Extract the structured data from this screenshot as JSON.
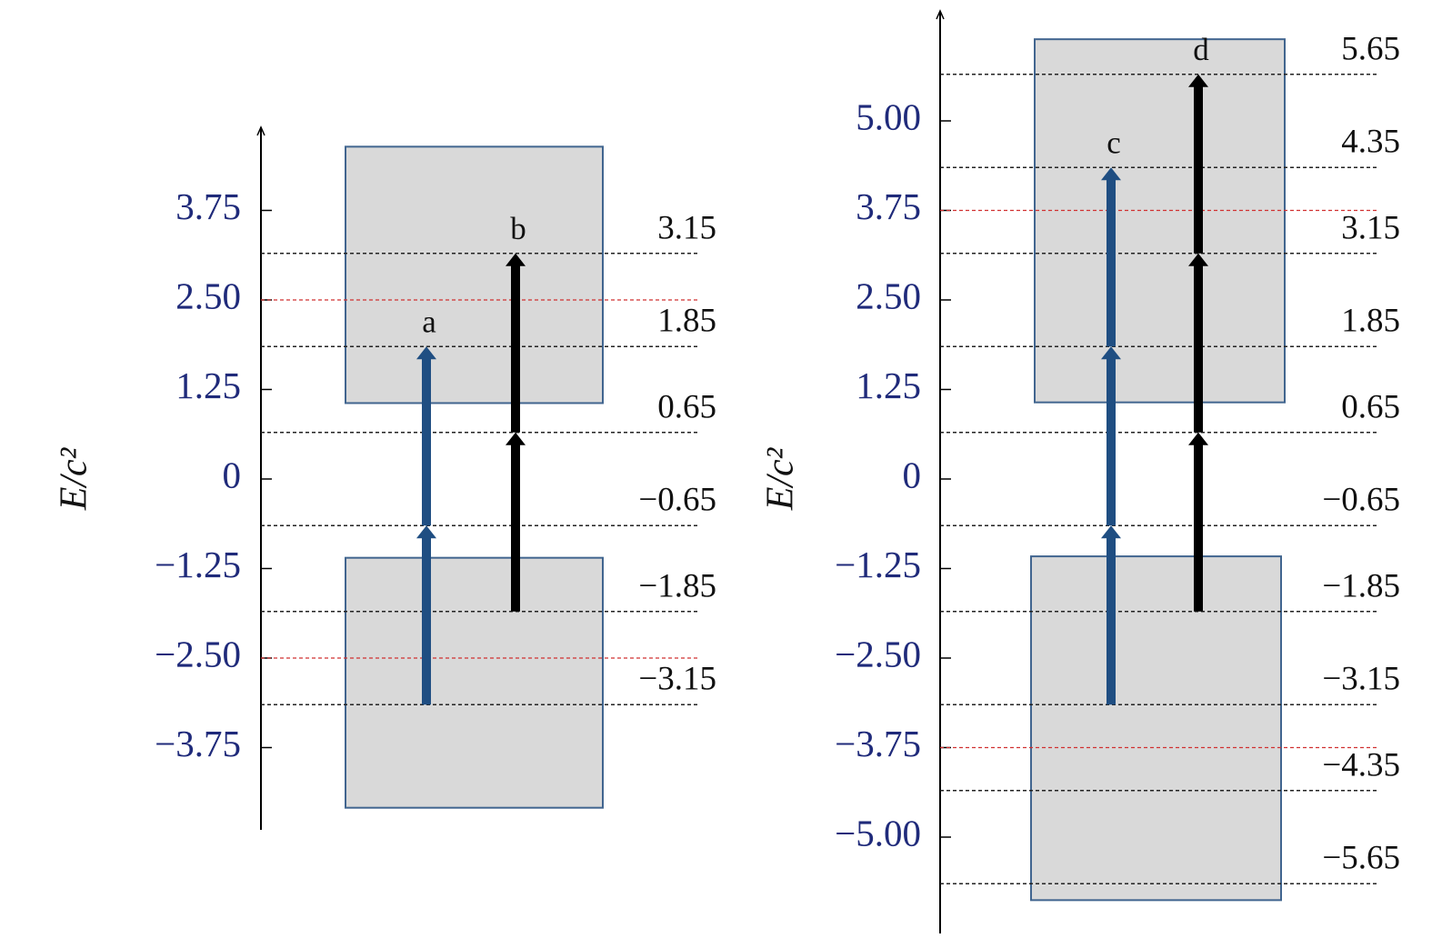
{
  "panels": [
    {
      "axis_label": "E/c²",
      "ticks": [
        {
          "value": 3.75,
          "label": "3.75"
        },
        {
          "value": 2.5,
          "label": "2.50"
        },
        {
          "value": 1.25,
          "label": "1.25"
        },
        0,
        {
          "value": -1.25,
          "label": "−1.25"
        },
        {
          "value": -2.5,
          "label": "−2.50"
        },
        {
          "value": -3.75,
          "label": "−3.75"
        }
      ],
      "levels": [
        {
          "value": 3.15,
          "label": "3.15"
        },
        {
          "value": 1.85,
          "label": "1.85"
        },
        {
          "value": 0.65,
          "label": "0.65"
        },
        {
          "value": -0.65,
          "label": "−0.65"
        },
        {
          "value": -1.85,
          "label": "−1.85"
        },
        {
          "value": -3.15,
          "label": "−3.15"
        }
      ],
      "red_levels": [
        2.5,
        -2.5
      ],
      "bands": [
        [
          4.64,
          1.06
        ],
        [
          -1.1,
          -4.59
        ]
      ],
      "arrows": [
        {
          "label": "a",
          "color": "#1f4e82",
          "points": [
            -3.15,
            -0.65,
            1.85
          ]
        },
        {
          "label": "b",
          "color": "#000000",
          "points": [
            -1.85,
            0.65,
            3.15
          ]
        }
      ]
    },
    {
      "axis_label": "E/c²",
      "ticks": [
        {
          "value": 5,
          "label": "5.00"
        },
        {
          "value": 3.75,
          "label": "3.75"
        },
        {
          "value": 2.5,
          "label": "2.50"
        },
        {
          "value": 1.25,
          "label": "1.25"
        },
        0,
        {
          "value": -1.25,
          "label": "−1.25"
        },
        {
          "value": -2.5,
          "label": "−2.50"
        },
        {
          "value": -3.75,
          "label": "−3.75"
        },
        {
          "value": -5,
          "label": "−5.00"
        }
      ],
      "levels": [
        {
          "value": 5.65,
          "label": "5.65"
        },
        {
          "value": 4.35,
          "label": "4.35"
        },
        {
          "value": 3.15,
          "label": "3.15"
        },
        {
          "value": 1.85,
          "label": "1.85"
        },
        {
          "value": 0.65,
          "label": "0.65"
        },
        {
          "value": -0.65,
          "label": "−0.65"
        },
        {
          "value": -1.85,
          "label": "−1.85"
        },
        {
          "value": -3.15,
          "label": "−3.15"
        },
        {
          "value": -4.35,
          "label": "−4.35"
        },
        {
          "value": -5.65,
          "label": "−5.65"
        }
      ],
      "red_levels": [
        3.75,
        -3.75
      ],
      "bands": [
        [
          6.14,
          1.07
        ],
        [
          -1.08,
          -5.88
        ]
      ],
      "arrows": [
        {
          "label": "c",
          "color": "#1f4e82",
          "points": [
            -3.15,
            -0.65,
            1.85,
            4.35
          ]
        },
        {
          "label": "d",
          "color": "#000000",
          "points": [
            -1.85,
            0.65,
            3.15,
            5.65
          ]
        }
      ]
    }
  ]
}
